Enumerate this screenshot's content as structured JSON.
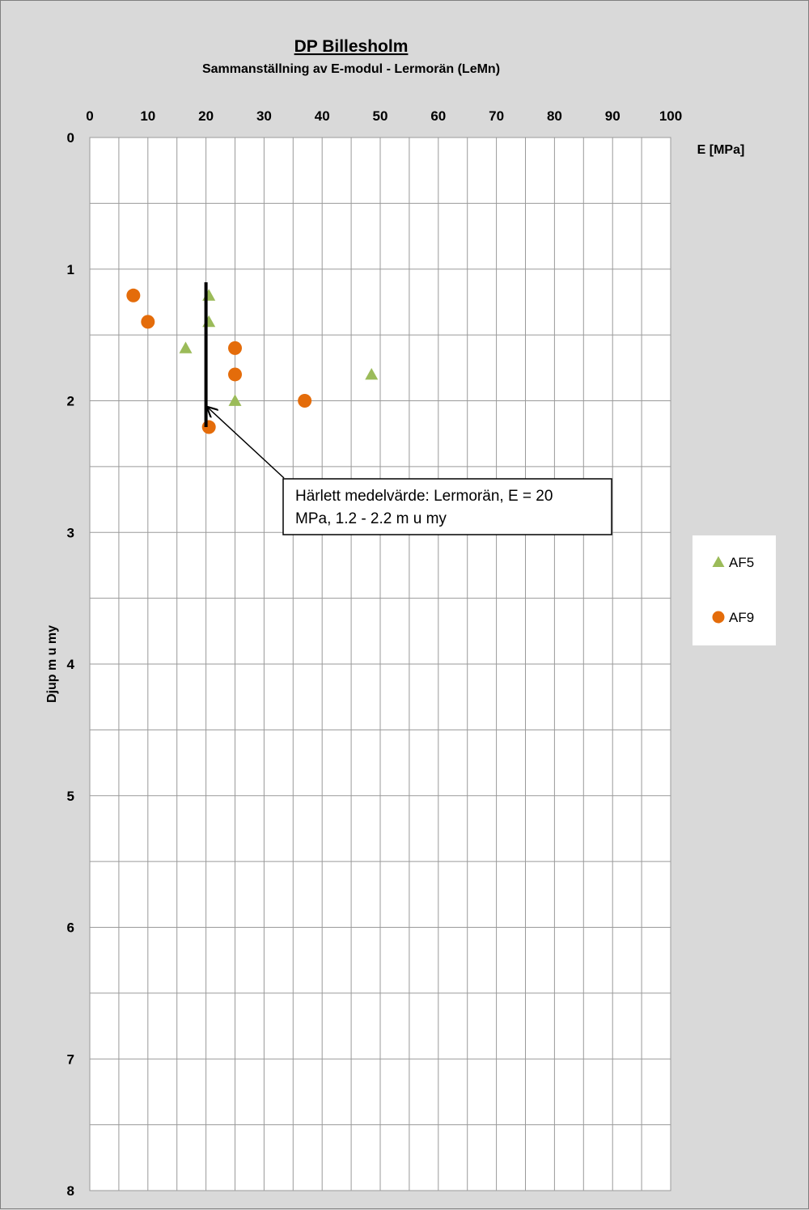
{
  "chart_data": {
    "type": "scatter",
    "title": "DP Billesholm",
    "subtitle": "Sammanställning  av E-modul - Lermorän (LeMn)",
    "xlabel": "E [MPa]",
    "ylabel": "Djup m u my",
    "xlim": [
      0,
      100
    ],
    "ylim": [
      0,
      8
    ],
    "y_inverted": true,
    "x_axis_position": "top",
    "x_ticks": [
      "0",
      "10",
      "20",
      "30",
      "40",
      "50",
      "60",
      "70",
      "80",
      "90",
      "100"
    ],
    "y_ticks": [
      "0",
      "1",
      "2",
      "3",
      "4",
      "5",
      "6",
      "7",
      "8"
    ],
    "grid": true,
    "legend_position": "right",
    "series": [
      {
        "name": "AF5",
        "marker": "triangle",
        "color": "#9bbb59",
        "points": [
          {
            "x": 20.5,
            "y": 1.2
          },
          {
            "x": 20.5,
            "y": 1.4
          },
          {
            "x": 16.5,
            "y": 1.6
          },
          {
            "x": 48.5,
            "y": 1.8
          },
          {
            "x": 25,
            "y": 2.0
          }
        ]
      },
      {
        "name": "AF9",
        "marker": "circle",
        "color": "#e46c0a",
        "points": [
          {
            "x": 7.5,
            "y": 1.2
          },
          {
            "x": 10,
            "y": 1.4
          },
          {
            "x": 25,
            "y": 1.6
          },
          {
            "x": 25,
            "y": 1.8
          },
          {
            "x": 37,
            "y": 2.0
          },
          {
            "x": 20.5,
            "y": 2.2
          }
        ]
      }
    ],
    "mean_line": {
      "x": 20,
      "y_from": 1.1,
      "y_to": 2.2,
      "color": "#000000"
    },
    "annotation": {
      "lines": [
        "Härlett medelvärde:  Lermorän,  E =  20",
        "MPa, 1.2 - 2.2 m u my"
      ],
      "arrow_target": {
        "x": 20,
        "y": 2.05
      }
    }
  }
}
